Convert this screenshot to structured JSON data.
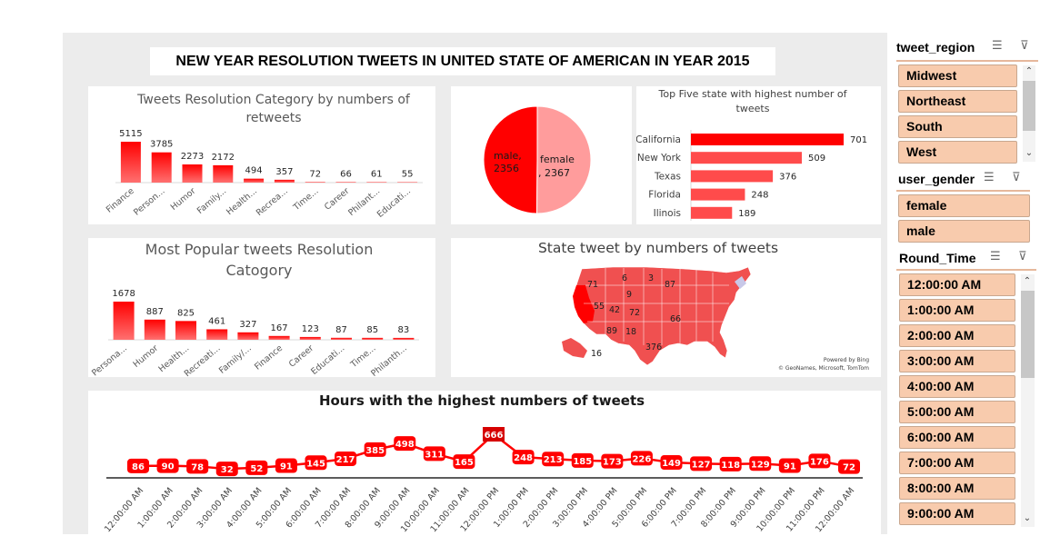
{
  "dashboard": {
    "title": "NEW YEAR RESOLUTION TWEETS IN UNITED STATE OF AMERICAN IN YEAR 2015"
  },
  "chart_data": [
    {
      "id": "retweets",
      "type": "bar",
      "title": "Tweets Resolution Category by numbers of retweets",
      "title_lines": [
        "Tweets Resolution Category by numbers of",
        "retweets"
      ],
      "categories": [
        "Finance",
        "Person...",
        "Humor",
        "Family...",
        "Health...",
        "Recrea...",
        "Time...",
        "Career",
        "Philant...",
        "Educati..."
      ],
      "values": [
        5115,
        3785,
        2273,
        2172,
        494,
        357,
        72,
        66,
        61,
        55
      ],
      "color": "#ff0000"
    },
    {
      "id": "gender-pie",
      "type": "pie",
      "slices": [
        {
          "label": "male,",
          "label2": "2356",
          "value": 2356,
          "color": "#ff0000"
        },
        {
          "label": "female",
          "label2": ", 2367",
          "value": 2367,
          "color": "#ff9c9c"
        }
      ]
    },
    {
      "id": "top-states",
      "type": "bar",
      "orientation": "horizontal",
      "title": "Top Five state with highest number of tweets",
      "title_lines": [
        "Top Five state with highest number of",
        "tweets"
      ],
      "categories": [
        "California",
        "New York",
        "Texas",
        "Florida",
        "Ilinois"
      ],
      "values": [
        701,
        509,
        376,
        248,
        189
      ],
      "color": "#ff4b4b"
    },
    {
      "id": "popular-category",
      "type": "bar",
      "title": "Most Popular tweets Resolution Catogory",
      "title_lines": [
        "Most Popular tweets Resolution",
        "Catogory"
      ],
      "categories": [
        "Persona...",
        "Humor",
        "Health...",
        "Recreati...",
        "Family/...",
        "Finance",
        "Career",
        "Educati...",
        "Time...",
        "Philanth..."
      ],
      "values": [
        1678,
        887,
        825,
        461,
        327,
        167,
        123,
        87,
        85,
        83
      ],
      "color": "#ff0000"
    },
    {
      "id": "state-map",
      "type": "map",
      "title": "State tweet by numbers of tweets",
      "labels": [
        "71",
        "6",
        "3",
        "87",
        "9",
        "55",
        "42",
        "72",
        "66",
        "89",
        "18",
        "376",
        "16"
      ],
      "credit_lines": [
        "Powered by Bing",
        "© GeoNames, Microsoft, TomTom"
      ]
    },
    {
      "id": "hours",
      "type": "line",
      "title": "Hours with the highest numbers of tweets",
      "categories": [
        "12:00:00 AM",
        "1:00:00 AM",
        "2:00:00 AM",
        "3:00:00 AM",
        "4:00:00 AM",
        "5:00:00 AM",
        "6:00:00 AM",
        "7:00:00 AM",
        "8:00:00 AM",
        "9:00:00 AM",
        "10:00:00 AM",
        "11:00:00 AM",
        "12:00:00 PM",
        "1:00:00 PM",
        "2:00:00 PM",
        "3:00:00 PM",
        "4:00:00 PM",
        "5:00:00 PM",
        "6:00:00 PM",
        "7:00:00 PM",
        "8:00:00 PM",
        "9:00:00 PM",
        "10:00:00 PM",
        "11:00:00 PM",
        "12:00:00 AM"
      ],
      "values": [
        86,
        90,
        78,
        32,
        52,
        91,
        145,
        217,
        385,
        498,
        311,
        165,
        666,
        248,
        213,
        185,
        173,
        226,
        149,
        127,
        118,
        129,
        91,
        176,
        72
      ],
      "color": "#ff0000",
      "highlight_color": "#d60000"
    }
  ],
  "slicers": {
    "region": {
      "title": "tweet_region",
      "items": [
        "Midwest",
        "Northeast",
        "South",
        "West"
      ]
    },
    "gender": {
      "title": "user_gender",
      "items": [
        "female",
        "male"
      ]
    },
    "time": {
      "title": "Round_Time",
      "items": [
        "12:00:00 AM",
        "1:00:00 AM",
        "2:00:00 AM",
        "3:00:00 AM",
        "4:00:00 AM",
        "5:00:00 AM",
        "6:00:00 AM",
        "7:00:00 AM",
        "8:00:00 AM",
        "9:00:00 AM"
      ]
    },
    "icons": {
      "multiselect": "multi-select-icon",
      "clear_filter": "clear-filter-icon",
      "scroll_up": "scroll-up-icon",
      "scroll_down": "scroll-down-icon"
    }
  }
}
